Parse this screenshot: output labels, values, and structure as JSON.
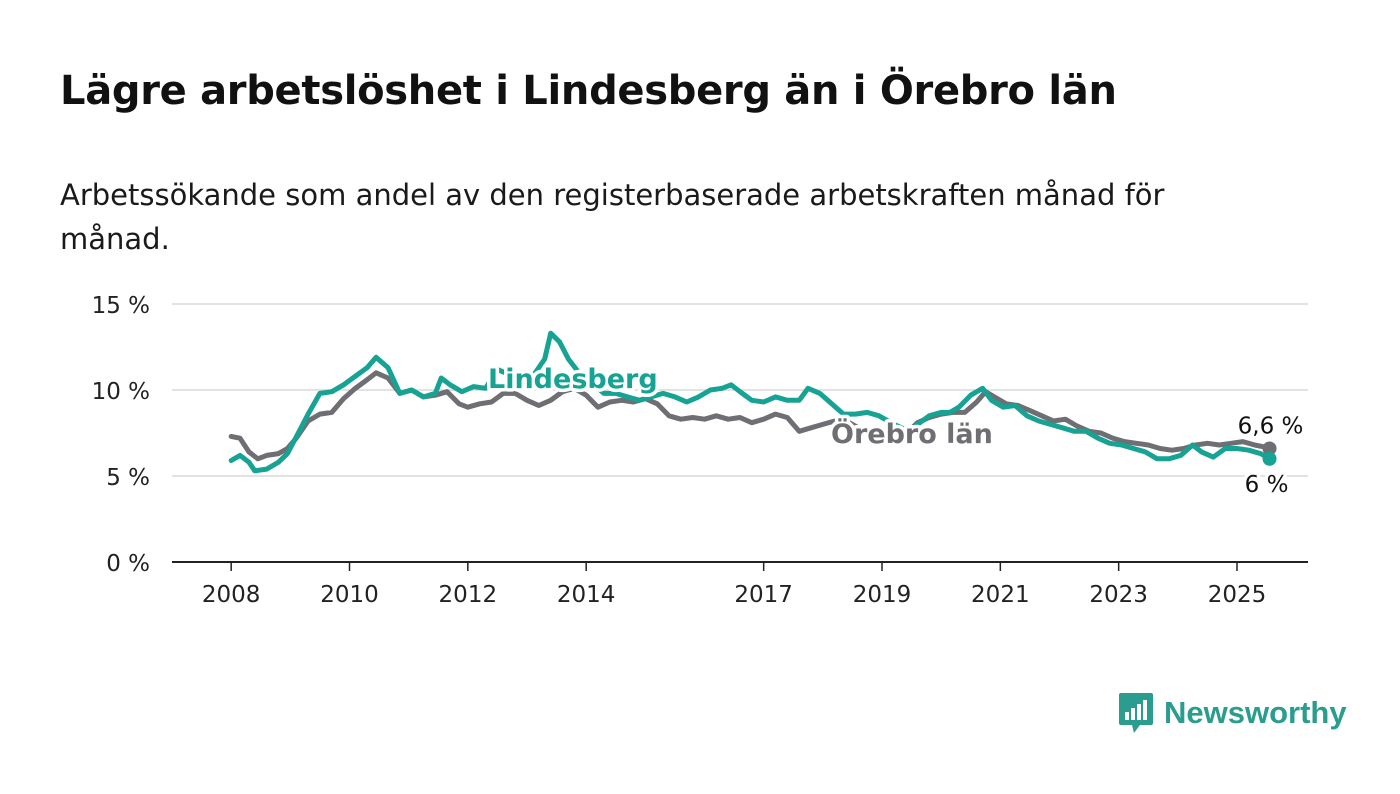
{
  "title": "Lägre arbetslöshet i Lindesberg än i Örebro län",
  "subtitle": "Arbetssökande som andel av den registerbaserade arbetskraften månad för månad.",
  "brand": {
    "name": "Newsworthy",
    "icon": "newsworthy-logo-icon",
    "color": "#2a9d8f"
  },
  "chart_data": {
    "type": "line",
    "title": "Lägre arbetslöshet i Lindesberg än i Örebro län",
    "subtitle": "Arbetssökande som andel av den registerbaserade arbetskraften månad för månad.",
    "xlabel": "",
    "ylabel": "",
    "xlim": [
      2007.0,
      2026.2
    ],
    "ylim": [
      0,
      15
    ],
    "x_ticks": [
      2008,
      2010,
      2012,
      2014,
      2017,
      2019,
      2021,
      2023,
      2025
    ],
    "x_tick_labels": [
      "2008",
      "2010",
      "2012",
      "2014",
      "2017",
      "2019",
      "2021",
      "2023",
      "2025"
    ],
    "y_ticks": [
      0,
      5,
      10,
      15
    ],
    "y_tick_labels": [
      "0 %",
      "5 %",
      "10 %",
      "15 %"
    ],
    "grid": true,
    "legend": "inline labels",
    "series": [
      {
        "name": "Örebro län",
        "label_text": "Örebro län",
        "end_label": "6,6 %",
        "color": "#6e6e73",
        "points": [
          [
            2008.0,
            7.3
          ],
          [
            2008.15,
            7.2
          ],
          [
            2008.3,
            6.4
          ],
          [
            2008.45,
            6.0
          ],
          [
            2008.6,
            6.2
          ],
          [
            2008.8,
            6.3
          ],
          [
            2008.95,
            6.6
          ],
          [
            2009.1,
            7.2
          ],
          [
            2009.3,
            8.2
          ],
          [
            2009.5,
            8.6
          ],
          [
            2009.7,
            8.7
          ],
          [
            2009.9,
            9.5
          ],
          [
            2010.1,
            10.1
          ],
          [
            2010.3,
            10.6
          ],
          [
            2010.45,
            11.0
          ],
          [
            2010.65,
            10.7
          ],
          [
            2010.85,
            9.8
          ],
          [
            2011.05,
            10.0
          ],
          [
            2011.25,
            9.6
          ],
          [
            2011.45,
            9.7
          ],
          [
            2011.65,
            9.9
          ],
          [
            2011.85,
            9.2
          ],
          [
            2012.0,
            9.0
          ],
          [
            2012.2,
            9.2
          ],
          [
            2012.4,
            9.3
          ],
          [
            2012.6,
            9.8
          ],
          [
            2012.8,
            9.8
          ],
          [
            2013.0,
            9.4
          ],
          [
            2013.2,
            9.1
          ],
          [
            2013.4,
            9.4
          ],
          [
            2013.6,
            9.9
          ],
          [
            2013.8,
            10.1
          ],
          [
            2014.0,
            9.7
          ],
          [
            2014.2,
            9.0
          ],
          [
            2014.4,
            9.3
          ],
          [
            2014.6,
            9.4
          ],
          [
            2014.8,
            9.3
          ],
          [
            2015.0,
            9.5
          ],
          [
            2015.2,
            9.2
          ],
          [
            2015.4,
            8.5
          ],
          [
            2015.6,
            8.3
          ],
          [
            2015.8,
            8.4
          ],
          [
            2016.0,
            8.3
          ],
          [
            2016.2,
            8.5
          ],
          [
            2016.4,
            8.3
          ],
          [
            2016.6,
            8.4
          ],
          [
            2016.8,
            8.1
          ],
          [
            2017.0,
            8.3
          ],
          [
            2017.2,
            8.6
          ],
          [
            2017.4,
            8.4
          ],
          [
            2017.6,
            7.6
          ],
          [
            2017.8,
            7.8
          ],
          [
            2018.0,
            8.0
          ],
          [
            2018.2,
            8.2
          ],
          [
            2018.4,
            8.2
          ],
          [
            2018.6,
            7.8
          ],
          [
            2018.8,
            7.7
          ],
          [
            2019.0,
            7.7
          ],
          [
            2019.2,
            7.6
          ],
          [
            2019.45,
            7.6
          ],
          [
            2019.6,
            8.1
          ],
          [
            2019.8,
            8.4
          ],
          [
            2020.0,
            8.6
          ],
          [
            2020.2,
            8.7
          ],
          [
            2020.4,
            8.7
          ],
          [
            2020.6,
            9.3
          ],
          [
            2020.75,
            9.9
          ],
          [
            2020.9,
            9.6
          ],
          [
            2021.1,
            9.2
          ],
          [
            2021.3,
            9.1
          ],
          [
            2021.5,
            8.8
          ],
          [
            2021.7,
            8.5
          ],
          [
            2021.9,
            8.2
          ],
          [
            2022.1,
            8.3
          ],
          [
            2022.3,
            7.9
          ],
          [
            2022.5,
            7.6
          ],
          [
            2022.7,
            7.5
          ],
          [
            2022.9,
            7.2
          ],
          [
            2023.1,
            7.0
          ],
          [
            2023.3,
            6.9
          ],
          [
            2023.5,
            6.8
          ],
          [
            2023.7,
            6.6
          ],
          [
            2023.9,
            6.5
          ],
          [
            2024.1,
            6.6
          ],
          [
            2024.3,
            6.8
          ],
          [
            2024.5,
            6.9
          ],
          [
            2024.7,
            6.8
          ],
          [
            2024.9,
            6.9
          ],
          [
            2025.1,
            7.0
          ],
          [
            2025.3,
            6.8
          ],
          [
            2025.45,
            6.7
          ],
          [
            2025.55,
            6.6
          ]
        ]
      },
      {
        "name": "Lindesberg",
        "label_text": "Lindesberg",
        "end_label": "6 %",
        "color": "#16a394",
        "points": [
          [
            2008.0,
            5.9
          ],
          [
            2008.15,
            6.2
          ],
          [
            2008.3,
            5.8
          ],
          [
            2008.4,
            5.3
          ],
          [
            2008.6,
            5.4
          ],
          [
            2008.8,
            5.8
          ],
          [
            2008.95,
            6.3
          ],
          [
            2009.15,
            7.6
          ],
          [
            2009.3,
            8.6
          ],
          [
            2009.5,
            9.8
          ],
          [
            2009.7,
            9.9
          ],
          [
            2009.9,
            10.3
          ],
          [
            2010.1,
            10.8
          ],
          [
            2010.3,
            11.3
          ],
          [
            2010.45,
            11.9
          ],
          [
            2010.65,
            11.3
          ],
          [
            2010.85,
            9.8
          ],
          [
            2011.05,
            10.0
          ],
          [
            2011.25,
            9.6
          ],
          [
            2011.45,
            9.8
          ],
          [
            2011.55,
            10.7
          ],
          [
            2011.7,
            10.3
          ],
          [
            2011.9,
            9.9
          ],
          [
            2012.1,
            10.2
          ],
          [
            2012.3,
            10.1
          ],
          [
            2012.5,
            11.2
          ],
          [
            2012.7,
            10.9
          ],
          [
            2012.9,
            10.2
          ],
          [
            2013.1,
            10.8
          ],
          [
            2013.3,
            11.8
          ],
          [
            2013.4,
            13.3
          ],
          [
            2013.55,
            12.8
          ],
          [
            2013.7,
            11.8
          ],
          [
            2013.9,
            10.9
          ],
          [
            2014.1,
            10.4
          ],
          [
            2014.3,
            9.8
          ],
          [
            2014.5,
            9.8
          ],
          [
            2014.7,
            9.6
          ],
          [
            2014.9,
            9.4
          ],
          [
            2015.1,
            9.6
          ],
          [
            2015.3,
            9.8
          ],
          [
            2015.5,
            9.6
          ],
          [
            2015.7,
            9.3
          ],
          [
            2015.9,
            9.6
          ],
          [
            2016.1,
            10.0
          ],
          [
            2016.3,
            10.1
          ],
          [
            2016.45,
            10.3
          ],
          [
            2016.6,
            9.9
          ],
          [
            2016.8,
            9.4
          ],
          [
            2017.0,
            9.3
          ],
          [
            2017.2,
            9.6
          ],
          [
            2017.4,
            9.4
          ],
          [
            2017.6,
            9.4
          ],
          [
            2017.75,
            10.1
          ],
          [
            2017.95,
            9.8
          ],
          [
            2018.15,
            9.2
          ],
          [
            2018.35,
            8.6
          ],
          [
            2018.55,
            8.6
          ],
          [
            2018.75,
            8.7
          ],
          [
            2018.95,
            8.5
          ],
          [
            2019.15,
            8.1
          ],
          [
            2019.45,
            7.6
          ],
          [
            2019.6,
            8.0
          ],
          [
            2019.8,
            8.5
          ],
          [
            2020.0,
            8.7
          ],
          [
            2020.15,
            8.7
          ],
          [
            2020.3,
            9.0
          ],
          [
            2020.5,
            9.7
          ],
          [
            2020.7,
            10.1
          ],
          [
            2020.85,
            9.4
          ],
          [
            2021.05,
            9.0
          ],
          [
            2021.25,
            9.1
          ],
          [
            2021.45,
            8.5
          ],
          [
            2021.65,
            8.2
          ],
          [
            2021.85,
            8.0
          ],
          [
            2022.05,
            7.8
          ],
          [
            2022.25,
            7.6
          ],
          [
            2022.45,
            7.6
          ],
          [
            2022.65,
            7.2
          ],
          [
            2022.85,
            6.9
          ],
          [
            2023.05,
            6.8
          ],
          [
            2023.25,
            6.6
          ],
          [
            2023.45,
            6.4
          ],
          [
            2023.65,
            6.0
          ],
          [
            2023.85,
            6.0
          ],
          [
            2024.05,
            6.2
          ],
          [
            2024.25,
            6.8
          ],
          [
            2024.4,
            6.4
          ],
          [
            2024.6,
            6.1
          ],
          [
            2024.8,
            6.6
          ],
          [
            2025.0,
            6.6
          ],
          [
            2025.2,
            6.5
          ],
          [
            2025.4,
            6.3
          ],
          [
            2025.55,
            6.0
          ]
        ]
      }
    ]
  }
}
